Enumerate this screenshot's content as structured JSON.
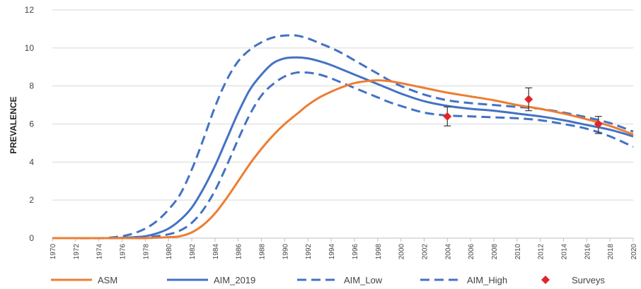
{
  "chart_data": {
    "type": "line",
    "title": "",
    "xlabel": "",
    "ylabel": "PREVALENCE",
    "xlim": [
      1970,
      2020
    ],
    "ylim": [
      0,
      12
    ],
    "x_ticks": [
      "1970",
      "1972",
      "1974",
      "1976",
      "1978",
      "1980",
      "1982",
      "1984",
      "1986",
      "1988",
      "1990",
      "1992",
      "1994",
      "1996",
      "1998",
      "2000",
      "2002",
      "2004",
      "2006",
      "2008",
      "2010",
      "2012",
      "2014",
      "2016",
      "2018",
      "2020"
    ],
    "y_ticks": [
      "0",
      "2",
      "4",
      "6",
      "8",
      "10",
      "12"
    ],
    "grid": "horizontal",
    "legend_position": "bottom",
    "series": [
      {
        "name": "ASM",
        "color": "#ED7D31",
        "style": "solid",
        "x": [
          1970,
          1976,
          1978,
          1980,
          1981,
          1982,
          1983,
          1984,
          1985,
          1986,
          1987,
          1988,
          1989,
          1990,
          1991,
          1992,
          1993,
          1994,
          1995,
          1996,
          1997,
          1998,
          1999,
          2000,
          2002,
          2004,
          2006,
          2008,
          2010,
          2012,
          2014,
          2016,
          2018,
          2020
        ],
        "y": [
          0,
          0,
          0,
          0.05,
          0.1,
          0.3,
          0.7,
          1.3,
          2.1,
          3.0,
          3.9,
          4.7,
          5.4,
          6.0,
          6.5,
          7.0,
          7.4,
          7.7,
          7.95,
          8.15,
          8.25,
          8.3,
          8.25,
          8.15,
          7.9,
          7.65,
          7.45,
          7.25,
          7.0,
          6.8,
          6.55,
          6.25,
          5.9,
          5.45
        ]
      },
      {
        "name": "AIM_2019",
        "color": "#4472C4",
        "style": "solid",
        "x": [
          1970,
          1975,
          1976,
          1977,
          1978,
          1979,
          1980,
          1981,
          1982,
          1983,
          1984,
          1985,
          1986,
          1987,
          1988,
          1989,
          1990,
          1991,
          1992,
          1993,
          1994,
          1995,
          1996,
          1997,
          1998,
          1999,
          2000,
          2002,
          2004,
          2006,
          2008,
          2010,
          2012,
          2014,
          2016,
          2018,
          2020
        ],
        "y": [
          0,
          0,
          0.02,
          0.05,
          0.1,
          0.25,
          0.5,
          0.95,
          1.6,
          2.6,
          3.8,
          5.2,
          6.6,
          7.8,
          8.6,
          9.2,
          9.45,
          9.5,
          9.45,
          9.3,
          9.1,
          8.85,
          8.6,
          8.35,
          8.1,
          7.85,
          7.6,
          7.2,
          6.95,
          6.8,
          6.7,
          6.55,
          6.4,
          6.2,
          5.95,
          5.7,
          5.35
        ]
      },
      {
        "name": "AIM_Low",
        "color": "#4472C4",
        "style": "dashed",
        "x": [
          1970,
          1976,
          1978,
          1979,
          1980,
          1981,
          1982,
          1983,
          1984,
          1985,
          1986,
          1987,
          1988,
          1989,
          1990,
          1991,
          1992,
          1993,
          1994,
          1995,
          1996,
          1997,
          1998,
          1999,
          2000,
          2002,
          2004,
          2006,
          2008,
          2010,
          2012,
          2014,
          2016,
          2018,
          2020
        ],
        "y": [
          0,
          0,
          0.05,
          0.1,
          0.2,
          0.4,
          0.8,
          1.5,
          2.5,
          3.8,
          5.2,
          6.5,
          7.5,
          8.1,
          8.5,
          8.7,
          8.7,
          8.6,
          8.4,
          8.15,
          7.9,
          7.65,
          7.4,
          7.15,
          6.95,
          6.6,
          6.45,
          6.4,
          6.35,
          6.3,
          6.2,
          6.0,
          5.75,
          5.35,
          4.8
        ]
      },
      {
        "name": "AIM_High",
        "color": "#4472C4",
        "style": "dashed",
        "x": [
          1970,
          1974,
          1975,
          1976,
          1977,
          1978,
          1979,
          1980,
          1981,
          1982,
          1983,
          1984,
          1985,
          1986,
          1987,
          1988,
          1989,
          1990,
          1991,
          1992,
          1993,
          1994,
          1995,
          1996,
          1997,
          1998,
          1999,
          2000,
          2002,
          2004,
          2006,
          2008,
          2010,
          2012,
          2014,
          2016,
          2018,
          2020
        ],
        "y": [
          0,
          0,
          0.03,
          0.1,
          0.25,
          0.5,
          0.9,
          1.5,
          2.3,
          3.6,
          5.2,
          6.9,
          8.3,
          9.3,
          9.9,
          10.3,
          10.55,
          10.65,
          10.65,
          10.5,
          10.25,
          10.0,
          9.7,
          9.35,
          9.0,
          8.65,
          8.3,
          8.0,
          7.55,
          7.25,
          7.1,
          7.0,
          6.9,
          6.8,
          6.6,
          6.35,
          6.05,
          5.6
        ]
      }
    ],
    "points": {
      "name": "Surveys",
      "color": "#E0262A",
      "x": [
        2004,
        2011,
        2017
      ],
      "y": [
        6.4,
        7.3,
        6.0
      ],
      "error_low": [
        5.9,
        6.7,
        5.5
      ],
      "error_high": [
        6.9,
        7.9,
        6.4
      ]
    }
  }
}
